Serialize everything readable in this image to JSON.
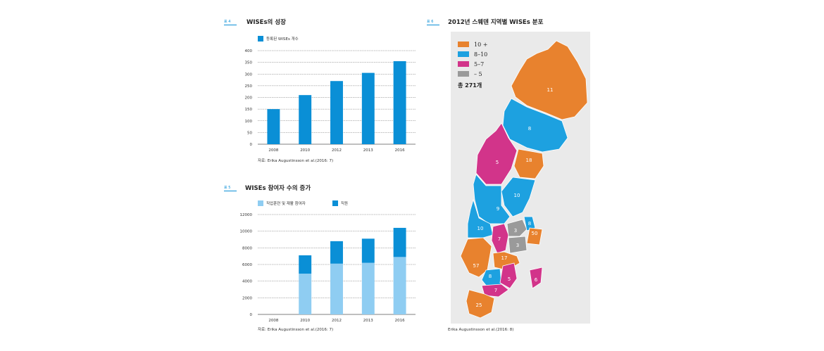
{
  "fig1": {
    "tag": "표 4",
    "title": "WISEs의 성장",
    "legend_label": "등록된 WISEs 개수",
    "source": "자료: Erika Augustinsson et al.(2016: 7)"
  },
  "fig2": {
    "tag": "표 5",
    "title": "WISEs 참여자 수의 증가",
    "legend_label_1": "직업훈련 및 재활 참여자",
    "legend_label_2": "직원",
    "source": "자료: Erika Augustinsson et al.(2016: 7)"
  },
  "fig3": {
    "tag": "표 6",
    "title": "2012년 스웨덴 지역별 WISEs 분포",
    "legend": [
      "10 +",
      "8–10",
      "5–7",
      "– 5"
    ],
    "total": "총 271개",
    "source": "Erika Augustinsson et al.(2016: 8)"
  },
  "colors": {
    "accent": "#0a8fd6",
    "light_blue": "#8fcdf2",
    "orange": "#e8822e",
    "blue": "#1da1e0",
    "magenta": "#d2348a",
    "grey": "#9a9a9a"
  },
  "chart_data": [
    {
      "type": "bar",
      "title": "WISEs의 성장",
      "categories": [
        "2008",
        "2010",
        "2012",
        "2013",
        "2016"
      ],
      "series": [
        {
          "name": "등록된 WISEs 개수",
          "values": [
            150,
            210,
            270,
            305,
            355
          ]
        }
      ],
      "ylim": [
        0,
        400
      ],
      "yticks": [
        "0",
        "50",
        "100",
        "150",
        "200",
        "250",
        "300",
        "350",
        "400"
      ],
      "grid": true,
      "legend_position": "top-left"
    },
    {
      "type": "bar",
      "stacked": true,
      "title": "WISEs 참여자 수의 증가",
      "categories": [
        "2008",
        "2010",
        "2012",
        "2013",
        "2016"
      ],
      "series": [
        {
          "name": "직업훈련 및 재활 참여자",
          "values": [
            0,
            4900,
            6100,
            6200,
            6900
          ]
        },
        {
          "name": "직원",
          "values": [
            0,
            2200,
            2700,
            2900,
            3500
          ]
        }
      ],
      "ylim": [
        0,
        12000
      ],
      "yticks": [
        "0",
        "2000",
        "4000",
        "6000",
        "8000",
        "10000",
        "12000"
      ],
      "grid": true,
      "legend_position": "top-left"
    },
    {
      "type": "map",
      "title": "2012년 스웨덴 지역별 WISEs 분포",
      "regions": [
        {
          "label": "11",
          "category": "10 +"
        },
        {
          "label": "8",
          "category": "8–10"
        },
        {
          "label": "5",
          "category": "5–7"
        },
        {
          "label": "18",
          "category": "10 +"
        },
        {
          "label": "10",
          "category": "8–10"
        },
        {
          "label": "9",
          "category": "8–10"
        },
        {
          "label": "10",
          "category": "8–10"
        },
        {
          "label": "7",
          "category": "5–7"
        },
        {
          "label": "3",
          "category": "– 5"
        },
        {
          "label": "8",
          "category": "8–10"
        },
        {
          "label": "50",
          "category": "10 +"
        },
        {
          "label": "3",
          "category": "– 5"
        },
        {
          "label": "17",
          "category": "10 +"
        },
        {
          "label": "57",
          "category": "10 +"
        },
        {
          "label": "8",
          "category": "8–10"
        },
        {
          "label": "5",
          "category": "5–7"
        },
        {
          "label": "6",
          "category": "5–7"
        },
        {
          "label": "7",
          "category": "5–7"
        },
        {
          "label": "25",
          "category": "10 +"
        }
      ],
      "total": "총 271개"
    }
  ]
}
